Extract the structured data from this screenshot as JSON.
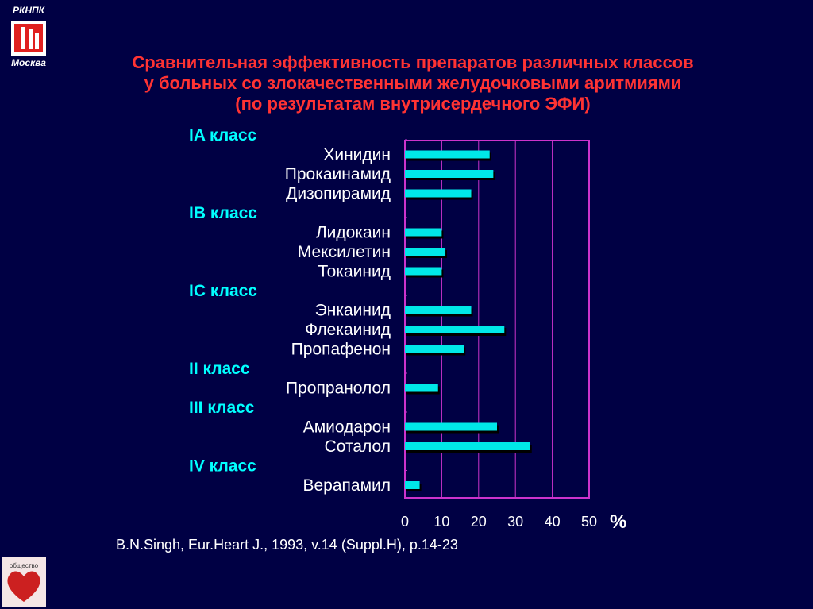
{
  "logo": {
    "org": "РКНПК",
    "city": "Москва",
    "bottom_text": "общество"
  },
  "title_lines": [
    "Сравнительная эффективность препаратов различных классов",
    "у больных со злокачественными  желудочковыми аритмиями",
    "(по результатам внутрисердечного ЭФИ)"
  ],
  "source": "B.N.Singh, Eur.Heart J., 1993, v.14 (Suppl.H), p.14-23",
  "colors": {
    "background": "#000044",
    "title": "#ff3333",
    "class_label": "#00ffff",
    "bar": "#00e8e8",
    "grid": "#cc33cc",
    "text": "#ffffff"
  },
  "chart_data": {
    "type": "bar",
    "orientation": "horizontal",
    "unit_label": "%",
    "xlim": [
      0,
      50
    ],
    "ticks": [
      "0",
      "10",
      "20",
      "30",
      "40",
      "50"
    ],
    "groups": [
      {
        "label": "IA класс",
        "items": [
          {
            "name": "Хинидин",
            "value": 23
          },
          {
            "name": "Прокаинамид",
            "value": 24
          },
          {
            "name": "Дизопирамид",
            "value": 18
          }
        ]
      },
      {
        "label": "IB класс",
        "items": [
          {
            "name": "Лидокаин",
            "value": 10
          },
          {
            "name": "Мексилетин",
            "value": 11
          },
          {
            "name": "Токаинид",
            "value": 10
          }
        ]
      },
      {
        "label": "IC класс",
        "items": [
          {
            "name": "Энкаинид",
            "value": 18
          },
          {
            "name": "Флекаинид",
            "value": 27
          },
          {
            "name": "Пропафенон",
            "value": 16
          }
        ]
      },
      {
        "label": "II класс",
        "items": [
          {
            "name": "Пропранолол",
            "value": 9
          }
        ]
      },
      {
        "label": "III класс",
        "items": [
          {
            "name": "Амиодарон",
            "value": 25
          },
          {
            "name": "Соталол",
            "value": 34
          }
        ]
      },
      {
        "label": "IV класс",
        "items": [
          {
            "name": "Верапамил",
            "value": 4
          }
        ]
      }
    ],
    "grid": true
  }
}
